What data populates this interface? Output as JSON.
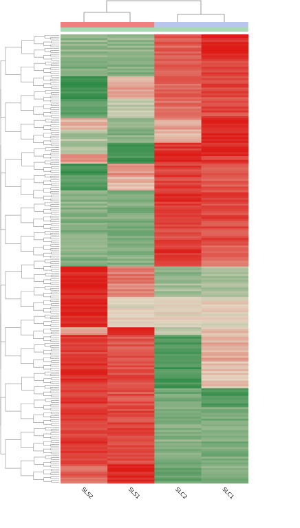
{
  "chart_data": {
    "type": "heatmap",
    "columns": [
      "SLS2",
      "SLS1",
      "SLC2",
      "SLC1"
    ],
    "column_groups": [
      {
        "columns": [
          "SLS2",
          "SLS1"
        ],
        "color": "#f08080"
      },
      {
        "columns": [
          "SLC2",
          "SLC1"
        ],
        "color": "#b8c6ee"
      }
    ],
    "color_scale": {
      "low": "#2e8b47",
      "mid": "#e3d6c2",
      "high": "#dd1b17"
    },
    "value_range": [
      -1,
      1
    ],
    "row_blocks": [
      {
        "rows": 12,
        "values": [
          -0.45,
          -0.45,
          0.65,
          0.95
        ]
      },
      {
        "rows": 10,
        "values": [
          -0.55,
          -0.5,
          0.65,
          0.8
        ]
      },
      {
        "rows": 12,
        "values": [
          -0.9,
          0.25,
          0.6,
          0.75
        ]
      },
      {
        "rows": 10,
        "values": [
          -0.7,
          -0.2,
          0.55,
          0.75
        ]
      },
      {
        "rows": 6,
        "values": [
          0.2,
          -0.4,
          0.3,
          1.0
        ]
      },
      {
        "rows": 7,
        "values": [
          -0.3,
          -0.5,
          0.2,
          1.0
        ]
      },
      {
        "rows": 6,
        "values": [
          -0.3,
          -0.9,
          0.85,
          0.95
        ]
      },
      {
        "rows": 5,
        "values": [
          0.3,
          -0.85,
          0.9,
          0.85
        ]
      },
      {
        "rows": 6,
        "values": [
          -0.9,
          0.35,
          0.8,
          0.7
        ]
      },
      {
        "rows": 8,
        "values": [
          -0.8,
          0.2,
          0.8,
          0.65
        ]
      },
      {
        "rows": 16,
        "values": [
          -0.5,
          -0.55,
          0.85,
          0.75
        ]
      },
      {
        "rows": 12,
        "values": [
          -0.55,
          -0.55,
          0.8,
          0.75
        ]
      },
      {
        "rows": 12,
        "values": [
          -0.5,
          -0.5,
          0.85,
          0.6
        ]
      },
      {
        "rows": 8,
        "values": [
          0.98,
          0.5,
          -0.45,
          -0.35
        ]
      },
      {
        "rows": 8,
        "values": [
          0.98,
          0.45,
          -0.35,
          -0.3
        ]
      },
      {
        "rows": 16,
        "values": [
          1.0,
          0.0,
          0.0,
          0.0
        ]
      },
      {
        "rows": 4,
        "values": [
          0.3,
          1.0,
          -0.2,
          0.1
        ]
      },
      {
        "rows": 14,
        "values": [
          0.85,
          0.7,
          -0.8,
          0.25
        ]
      },
      {
        "rows": 14,
        "values": [
          0.85,
          0.75,
          -0.85,
          0.1
        ]
      },
      {
        "rows": 10,
        "values": [
          0.85,
          0.7,
          -0.6,
          -0.85
        ]
      },
      {
        "rows": 18,
        "values": [
          0.8,
          0.75,
          -0.5,
          -0.55
        ]
      },
      {
        "rows": 12,
        "values": [
          0.85,
          0.7,
          -0.55,
          -0.6
        ]
      },
      {
        "rows": 10,
        "values": [
          0.6,
          0.95,
          -0.65,
          -0.5
        ]
      }
    ]
  }
}
